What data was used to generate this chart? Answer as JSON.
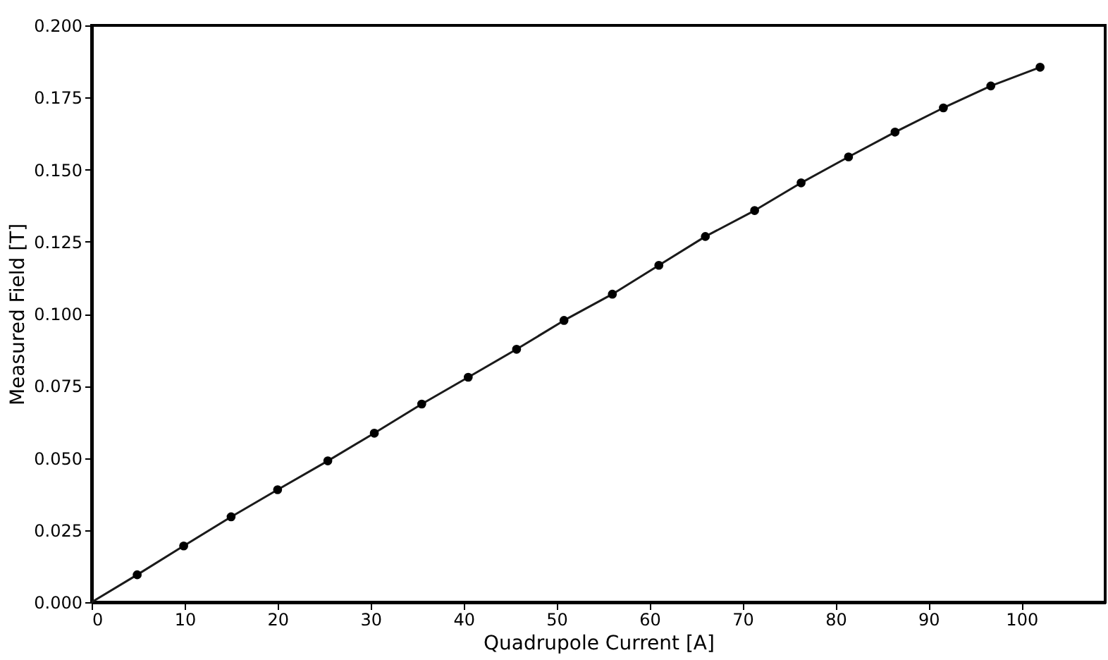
{
  "chart_data": {
    "type": "scatter",
    "xlabel": "Quadrupole Current [A]",
    "ylabel": "Measured Field [T]",
    "xlim": [
      0,
      109
    ],
    "xticks": [
      0,
      10,
      20,
      30,
      40,
      50,
      60,
      70,
      80,
      90,
      100
    ],
    "ylim": [
      0,
      0.2
    ],
    "yticks": [
      {
        "value": 0,
        "label": "0.000"
      },
      0.025,
      {
        "value": 0.05,
        "label": "0.050"
      },
      0.075,
      {
        "value": 0.1,
        "label": "0.100"
      },
      0.125,
      {
        "value": 0.15,
        "label": "0.150"
      },
      0.175,
      {
        "value": 0.2,
        "label": "0.200"
      }
    ],
    "grid": false,
    "series": [
      {
        "type": "line",
        "color": "#1a1a1a",
        "marker": "none",
        "line_style": "solid",
        "x": [
          0,
          4.9,
          9.9,
          15,
          20,
          25.4,
          30.4,
          35.5,
          40.5,
          45.7,
          50.8,
          56,
          61,
          66,
          71.3,
          76.3,
          81.4,
          86.4,
          91.6,
          96.7,
          102
        ],
        "values": [
          0,
          0.0095,
          0.0195,
          0.0296,
          0.039,
          0.049,
          0.0586,
          0.0687,
          0.078,
          0.0877,
          0.0977,
          0.1068,
          0.1168,
          0.1268,
          0.1358,
          0.1454,
          0.1544,
          0.163,
          0.1714,
          0.179,
          0.1855
        ]
      },
      {
        "color": "#000000",
        "marker": "circle",
        "x": [
          4.9,
          9.9,
          15,
          20,
          25.4,
          30.4,
          35.5,
          40.5,
          45.7,
          50.8,
          56,
          61,
          66,
          71.3,
          76.3,
          81.4,
          86.4,
          91.6,
          96.7,
          102
        ],
        "values": [
          0.0095,
          0.0195,
          0.0296,
          0.039,
          0.049,
          0.0586,
          0.0687,
          0.078,
          0.0877,
          0.0977,
          0.1068,
          0.1168,
          0.1268,
          0.1358,
          0.1454,
          0.1544,
          0.163,
          0.1714,
          0.179,
          0.1855
        ]
      }
    ]
  }
}
